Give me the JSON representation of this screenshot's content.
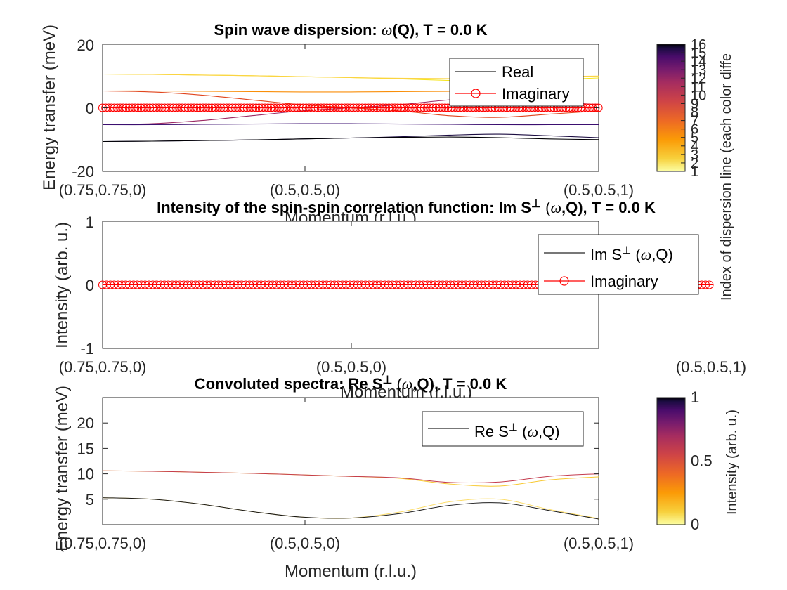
{
  "chart_data": [
    {
      "type": "line",
      "title": "Spin wave dispersion: ω(Q), T =   0.0 K",
      "xlabel": "Momentum (r.l.u.)",
      "ylabel": "Energy transfer (meV)",
      "x_ticks": [
        "(0.75,0.75,0)",
        "(0.5,0.5,0)",
        "(0.5,0.5,1)"
      ],
      "y_ticks": [
        "-20",
        "0",
        "20"
      ],
      "ylim": [
        -20,
        20
      ],
      "legend": [
        "Real",
        "Imaginary"
      ],
      "legend_position": "top-right",
      "colorbar": {
        "label": "Index of dispersion line (each color diffe",
        "ticks": [
          "1",
          "2",
          "3",
          "4",
          "5",
          "6",
          "7",
          "8",
          "9",
          "10",
          "11",
          "12",
          "13",
          "14",
          "15",
          "16"
        ],
        "range": [
          1,
          16
        ]
      },
      "x": [
        0,
        0.1,
        0.2,
        0.3,
        0.4,
        0.5,
        0.6,
        0.7,
        0.8,
        0.9,
        1.0
      ],
      "series": [
        {
          "values": [
            10.6,
            10.5,
            10.3,
            10.1,
            9.8,
            9.5,
            9.1,
            8.6,
            8.3,
            8.8,
            9.4
          ],
          "color": "#f6e620"
        },
        {
          "values": [
            10.6,
            10.5,
            10.3,
            10.1,
            9.8,
            9.5,
            9.3,
            9.2,
            9.4,
            9.8,
            10.0
          ],
          "color": "#fbd342"
        },
        {
          "values": [
            5.3,
            5.3,
            5.2,
            5.1,
            5.0,
            5.0,
            5.1,
            5.2,
            5.3,
            5.3,
            5.3
          ],
          "color": "#f98e09"
        },
        {
          "values": [
            5.3,
            5.0,
            4.0,
            2.5,
            1.0,
            0.0,
            -1.0,
            -2.5,
            -3.0,
            -2.0,
            -1.0
          ],
          "color": "#e0451e"
        },
        {
          "values": [
            -5.3,
            -5.0,
            -4.0,
            -2.5,
            -1.0,
            0.0,
            1.0,
            2.5,
            3.0,
            2.0,
            1.0
          ],
          "color": "#9c2964"
        },
        {
          "values": [
            -5.3,
            -5.3,
            -5.2,
            -5.1,
            -5.0,
            -5.0,
            -5.1,
            -5.2,
            -5.3,
            -5.3,
            -5.3
          ],
          "color": "#3b0f70"
        },
        {
          "values": [
            -10.6,
            -10.5,
            -10.3,
            -10.1,
            -9.8,
            -9.5,
            -9.1,
            -8.6,
            -8.3,
            -8.8,
            -9.4
          ],
          "color": "#1b0c41"
        },
        {
          "values": [
            -10.6,
            -10.5,
            -10.3,
            -10.1,
            -9.8,
            -9.5,
            -9.3,
            -9.2,
            -9.4,
            -9.8,
            -10.0
          ],
          "color": "#000004"
        }
      ],
      "imaginary": {
        "values": [
          0,
          0,
          0,
          0,
          0,
          0,
          0,
          0,
          0,
          0,
          0
        ],
        "color": "#ff0000"
      }
    },
    {
      "type": "line",
      "title": "Intensity of the spin-spin correlation function: Im S⊥ (ω,Q), T =   0.0 K",
      "xlabel": "Momentum (r.l.u.)",
      "ylabel": "Intensity (arb. u.)",
      "x_ticks": [
        "(0.75,0.75,0)",
        "(0.5,0.5,0)",
        "(0.5,0.5,1)"
      ],
      "y_ticks": [
        "-1",
        "0",
        "1"
      ],
      "ylim": [
        -1,
        1
      ],
      "legend": [
        "Im S⊥ (ω,Q)",
        "Imaginary"
      ],
      "legend_position": "top-right",
      "series": [
        {
          "name": "Im S⊥ (ω,Q)",
          "values": [
            0,
            0,
            0,
            0,
            0,
            0,
            0,
            0,
            0,
            0,
            0
          ],
          "color": "#000000"
        },
        {
          "name": "Imaginary",
          "values": [
            0,
            0,
            0,
            0,
            0,
            0,
            0,
            0,
            0,
            0,
            0
          ],
          "color": "#ff0000"
        }
      ]
    },
    {
      "type": "line",
      "title": "Convoluted spectra: Re S⊥ (ω,Q), T =   0.0 K",
      "xlabel": "Momentum (r.l.u.)",
      "ylabel": "Energy transfer (meV)",
      "x_ticks": [
        "(0.75,0.75,0)",
        "(0.5,0.5,0)",
        "(0.5,0.5,1)"
      ],
      "y_ticks": [
        "5",
        "10",
        "15",
        "20"
      ],
      "ylim": [
        0,
        25
      ],
      "legend": [
        "Re S⊥ (ω,Q)"
      ],
      "legend_position": "top-right",
      "colorbar": {
        "label": "Intensity (arb. u.)",
        "ticks": [
          "0",
          "0.5",
          "1"
        ],
        "range": [
          0,
          1
        ]
      },
      "x": [
        0,
        0.1,
        0.2,
        0.3,
        0.4,
        0.5,
        0.6,
        0.7,
        0.8,
        0.9,
        1.0
      ],
      "series": [
        {
          "values": [
            10.6,
            10.5,
            10.3,
            10.1,
            9.8,
            9.5,
            9.1,
            8.0,
            7.6,
            8.8,
            9.4
          ],
          "color": "#f8c932"
        },
        {
          "values": [
            10.6,
            10.5,
            10.3,
            10.1,
            9.8,
            9.5,
            9.2,
            8.3,
            8.4,
            9.5,
            10.0
          ],
          "color": "#c43c4e"
        },
        {
          "values": [
            5.3,
            5.0,
            4.0,
            2.6,
            1.5,
            1.3,
            2.5,
            4.5,
            5.0,
            3.0,
            1.2
          ],
          "color": "#fcdd6a"
        },
        {
          "values": [
            5.3,
            5.0,
            4.0,
            2.6,
            1.5,
            1.3,
            2.2,
            3.8,
            4.3,
            2.8,
            1.1
          ],
          "color": "#1a1a1a"
        }
      ]
    }
  ]
}
